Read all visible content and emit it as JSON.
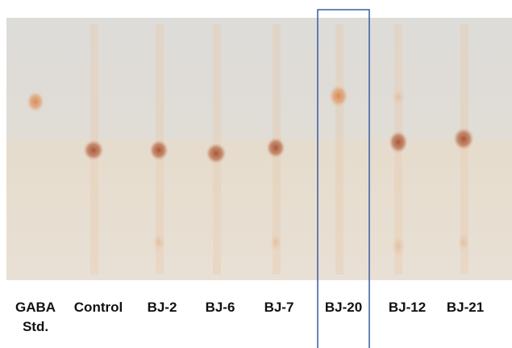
{
  "lanes": [
    {
      "label": "GABA",
      "sublabel": "Std."
    },
    {
      "label": "Control"
    },
    {
      "label": "BJ-2"
    },
    {
      "label": "BJ-6"
    },
    {
      "label": "BJ-7"
    },
    {
      "label": "BJ-20"
    },
    {
      "label": "BJ-12"
    },
    {
      "label": "BJ-21"
    }
  ]
}
